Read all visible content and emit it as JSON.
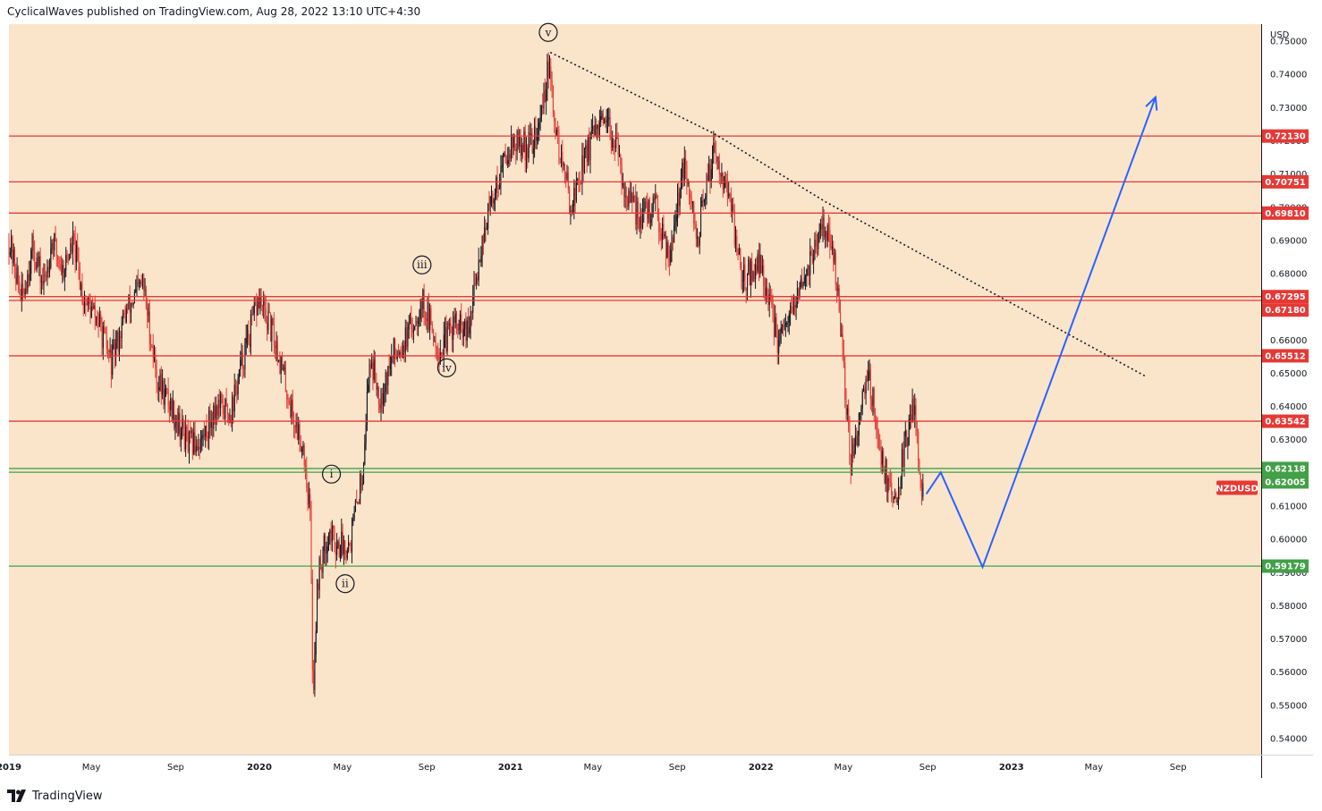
{
  "header": {
    "text": "CyclicalWaves published on TradingView.com, Aug 28, 2022 13:10 UTC+4:30"
  },
  "footer": {
    "brand": "TradingView",
    "logo_icon": "tradingview-logo-icon"
  },
  "colors": {
    "background": "#fae5cb",
    "resistance": "#e53935",
    "support": "#43a047",
    "projection": "#2962ff",
    "candle_up": "#131722",
    "candle_down": "#e53935",
    "trendline": "#131722"
  },
  "chart_data": {
    "type": "candlestick",
    "symbol": "NZDUSD",
    "currency": "USD",
    "ylim": [
      0.535,
      0.755
    ],
    "x_range": [
      "2019-01-01",
      "2023-12-31"
    ],
    "y_ticks": [
      "0.75000",
      "0.74000",
      "0.73000",
      "0.72000",
      "0.71000",
      "0.70000",
      "0.69000",
      "0.68000",
      "0.67000",
      "0.66000",
      "0.65000",
      "0.64000",
      "0.63000",
      "0.62000",
      "0.61000",
      "0.60000",
      "0.59000",
      "0.58000",
      "0.57000",
      "0.56000",
      "0.55000",
      "0.54000"
    ],
    "x_ticks": [
      {
        "label": "2019",
        "date": "2019-01-01"
      },
      {
        "label": "May",
        "date": "2019-05-01"
      },
      {
        "label": "Sep",
        "date": "2019-09-01"
      },
      {
        "label": "2020",
        "date": "2020-01-01"
      },
      {
        "label": "May",
        "date": "2020-05-01"
      },
      {
        "label": "Sep",
        "date": "2020-09-01"
      },
      {
        "label": "2021",
        "date": "2021-01-01"
      },
      {
        "label": "May",
        "date": "2021-05-01"
      },
      {
        "label": "Sep",
        "date": "2021-09-01"
      },
      {
        "label": "2022",
        "date": "2022-01-01"
      },
      {
        "label": "May",
        "date": "2022-05-01"
      },
      {
        "label": "Sep",
        "date": "2022-09-01"
      },
      {
        "label": "2023",
        "date": "2023-01-01"
      },
      {
        "label": "May",
        "date": "2023-05-01"
      },
      {
        "label": "Sep",
        "date": "2023-09-01"
      }
    ],
    "horizontal_levels": [
      {
        "label": "0.72130",
        "value": 0.7213,
        "kind": "resistance"
      },
      {
        "label": "0.70751",
        "value": 0.70751,
        "kind": "resistance"
      },
      {
        "label": "0.69810",
        "value": 0.6981,
        "kind": "resistance"
      },
      {
        "label": "0.67295",
        "value": 0.67295,
        "kind": "resistance"
      },
      {
        "label": "0.67180",
        "value": 0.6718,
        "kind": "resistance"
      },
      {
        "label": "0.65512",
        "value": 0.65512,
        "kind": "resistance"
      },
      {
        "label": "0.63542",
        "value": 0.63542,
        "kind": "resistance"
      },
      {
        "label": "0.62118",
        "value": 0.62118,
        "kind": "support"
      },
      {
        "label": "0.62005",
        "value": 0.62005,
        "kind": "support"
      },
      {
        "label": "0.59179",
        "value": 0.59179,
        "kind": "support"
      }
    ],
    "symbol_badge": {
      "label": "NZDUSD",
      "value": 0.6135
    },
    "wave_labels": [
      {
        "label": "i",
        "date": "2020-04-15",
        "value": 0.6195
      },
      {
        "label": "ii",
        "date": "2020-05-05",
        "value": 0.5865
      },
      {
        "label": "iii",
        "date": "2020-08-25",
        "value": 0.6825
      },
      {
        "label": "iv",
        "date": "2020-09-30",
        "value": 0.6515
      },
      {
        "label": "v",
        "date": "2021-02-25",
        "value": 0.7525
      }
    ],
    "trendline": {
      "style": "dotted",
      "points": [
        {
          "date": "2021-02-28",
          "value": 0.7465
        },
        {
          "date": "2021-10-25",
          "value": 0.722
        },
        {
          "date": "2022-04-05",
          "value": 0.7015
        },
        {
          "date": "2023-07-15",
          "value": 0.649
        }
      ]
    },
    "projection": {
      "points": [
        {
          "date": "2022-08-30",
          "value": 0.6135
        },
        {
          "date": "2022-09-20",
          "value": 0.62
        },
        {
          "date": "2022-11-20",
          "value": 0.5915
        },
        {
          "date": "2023-07-30",
          "value": 0.733
        }
      ]
    },
    "price_path": [
      {
        "date": "2019-01-01",
        "value": 0.69
      },
      {
        "date": "2019-01-20",
        "value": 0.672
      },
      {
        "date": "2019-02-05",
        "value": 0.688
      },
      {
        "date": "2019-02-20",
        "value": 0.676
      },
      {
        "date": "2019-03-05",
        "value": 0.69
      },
      {
        "date": "2019-03-20",
        "value": 0.681
      },
      {
        "date": "2019-04-05",
        "value": 0.689
      },
      {
        "date": "2019-04-20",
        "value": 0.672
      },
      {
        "date": "2019-05-10",
        "value": 0.666
      },
      {
        "date": "2019-05-30",
        "value": 0.653
      },
      {
        "date": "2019-06-20",
        "value": 0.668
      },
      {
        "date": "2019-07-15",
        "value": 0.677
      },
      {
        "date": "2019-08-05",
        "value": 0.648
      },
      {
        "date": "2019-08-25",
        "value": 0.64
      },
      {
        "date": "2019-09-20",
        "value": 0.628
      },
      {
        "date": "2019-10-10",
        "value": 0.63
      },
      {
        "date": "2019-10-30",
        "value": 0.64
      },
      {
        "date": "2019-11-20",
        "value": 0.638
      },
      {
        "date": "2019-12-10",
        "value": 0.656
      },
      {
        "date": "2019-12-31",
        "value": 0.672
      },
      {
        "date": "2020-01-25",
        "value": 0.659
      },
      {
        "date": "2020-02-20",
        "value": 0.636
      },
      {
        "date": "2020-03-05",
        "value": 0.628
      },
      {
        "date": "2020-03-15",
        "value": 0.607
      },
      {
        "date": "2020-03-19",
        "value": 0.553
      },
      {
        "date": "2020-03-26",
        "value": 0.588
      },
      {
        "date": "2020-04-10",
        "value": 0.602
      },
      {
        "date": "2020-04-25",
        "value": 0.598
      },
      {
        "date": "2020-05-12",
        "value": 0.599
      },
      {
        "date": "2020-05-30",
        "value": 0.62
      },
      {
        "date": "2020-06-10",
        "value": 0.655
      },
      {
        "date": "2020-06-25",
        "value": 0.643
      },
      {
        "date": "2020-07-15",
        "value": 0.656
      },
      {
        "date": "2020-08-05",
        "value": 0.661
      },
      {
        "date": "2020-08-25",
        "value": 0.672
      },
      {
        "date": "2020-09-20",
        "value": 0.656
      },
      {
        "date": "2020-10-10",
        "value": 0.665
      },
      {
        "date": "2020-10-31",
        "value": 0.661
      },
      {
        "date": "2020-11-20",
        "value": 0.69
      },
      {
        "date": "2020-12-10",
        "value": 0.706
      },
      {
        "date": "2020-12-31",
        "value": 0.719
      },
      {
        "date": "2021-01-25",
        "value": 0.718
      },
      {
        "date": "2021-02-10",
        "value": 0.722
      },
      {
        "date": "2021-02-25",
        "value": 0.742
      },
      {
        "date": "2021-03-10",
        "value": 0.72
      },
      {
        "date": "2021-03-31",
        "value": 0.7
      },
      {
        "date": "2021-04-20",
        "value": 0.716
      },
      {
        "date": "2021-05-10",
        "value": 0.724
      },
      {
        "date": "2021-05-31",
        "value": 0.722
      },
      {
        "date": "2021-06-20",
        "value": 0.702
      },
      {
        "date": "2021-07-10",
        "value": 0.697
      },
      {
        "date": "2021-07-31",
        "value": 0.7
      },
      {
        "date": "2021-08-20",
        "value": 0.686
      },
      {
        "date": "2021-09-10",
        "value": 0.712
      },
      {
        "date": "2021-09-30",
        "value": 0.69
      },
      {
        "date": "2021-10-25",
        "value": 0.719
      },
      {
        "date": "2021-11-15",
        "value": 0.703
      },
      {
        "date": "2021-12-05",
        "value": 0.678
      },
      {
        "date": "2021-12-31",
        "value": 0.683
      },
      {
        "date": "2022-01-27",
        "value": 0.658
      },
      {
        "date": "2022-02-20",
        "value": 0.67
      },
      {
        "date": "2022-03-15",
        "value": 0.685
      },
      {
        "date": "2022-04-05",
        "value": 0.695
      },
      {
        "date": "2022-04-20",
        "value": 0.68
      },
      {
        "date": "2022-05-12",
        "value": 0.622
      },
      {
        "date": "2022-06-05",
        "value": 0.652
      },
      {
        "date": "2022-06-25",
        "value": 0.625
      },
      {
        "date": "2022-07-14",
        "value": 0.61
      },
      {
        "date": "2022-08-01",
        "value": 0.63
      },
      {
        "date": "2022-08-12",
        "value": 0.642
      },
      {
        "date": "2022-08-20",
        "value": 0.621
      },
      {
        "date": "2022-08-26",
        "value": 0.613
      }
    ]
  }
}
